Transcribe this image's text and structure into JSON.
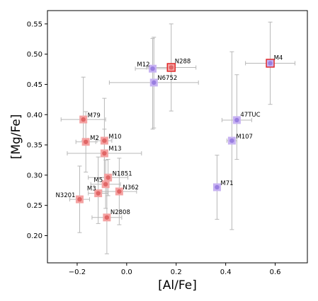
{
  "chart_data": {
    "type": "scatter",
    "title": "",
    "xlabel": "[Al/Fe]",
    "ylabel": "[Mg/Fe]",
    "xlim": [
      -0.32,
      0.73
    ],
    "ylim": [
      0.155,
      0.572
    ],
    "xticks": [
      -0.2,
      0.0,
      0.2,
      0.4,
      0.6
    ],
    "xtick_labels": [
      "−0.2",
      "0.0",
      "0.2",
      "0.4",
      "0.6"
    ],
    "yticks": [
      0.2,
      0.25,
      0.3,
      0.35,
      0.4,
      0.45,
      0.5,
      0.55
    ],
    "ytick_labels": [
      "0.20",
      "0.25",
      "0.30",
      "0.35",
      "0.40",
      "0.45",
      "0.50",
      "0.55"
    ],
    "grid": false,
    "colors": {
      "red_fill": "#e06666",
      "red_square": "#f4a3a3",
      "purple_fill": "#9a7fe0",
      "purple_square": "#c7b2f2",
      "highlight_edge": "#e02020",
      "errorbar": "#b8b8b8"
    },
    "points": [
      {
        "name": "M79",
        "x": -0.175,
        "y": 0.392,
        "xerr": 0.09,
        "yerr_lo": 0.035,
        "yerr_hi": 0.07,
        "group": "red"
      },
      {
        "name": "M2",
        "x": -0.165,
        "y": 0.355,
        "xerr": 0.04,
        "yerr_lo": 0.05,
        "yerr_hi": 0.05,
        "group": "red"
      },
      {
        "name": "M10",
        "x": -0.09,
        "y": 0.357,
        "xerr": 0.03,
        "yerr_lo": 0.07,
        "yerr_hi": 0.07,
        "group": "red"
      },
      {
        "name": "M13",
        "x": -0.09,
        "y": 0.336,
        "xerr": 0.15,
        "yerr_lo": 0.04,
        "yerr_hi": 0.04,
        "group": "red"
      },
      {
        "name": "N1851",
        "x": -0.075,
        "y": 0.296,
        "xerr": 0.08,
        "yerr_lo": 0.03,
        "yerr_hi": 0.03,
        "group": "red"
      },
      {
        "name": "M5",
        "x": -0.085,
        "y": 0.285,
        "xerr": 0.06,
        "yerr_lo": 0.04,
        "yerr_hi": 0.04,
        "group": "red"
      },
      {
        "name": "N362",
        "x": -0.03,
        "y": 0.273,
        "xerr": 0.07,
        "yerr_lo": 0.055,
        "yerr_hi": 0.055,
        "group": "red"
      },
      {
        "name": "M3",
        "x": -0.115,
        "y": 0.27,
        "xerr": 0.04,
        "yerr_lo": 0.05,
        "yerr_hi": 0.06,
        "group": "red"
      },
      {
        "name": "N3201",
        "x": -0.19,
        "y": 0.26,
        "xerr": 0.04,
        "yerr_lo": 0.055,
        "yerr_hi": 0.055,
        "group": "red"
      },
      {
        "name": "N2808",
        "x": -0.08,
        "y": 0.23,
        "xerr": 0.06,
        "yerr_lo": 0.06,
        "yerr_hi": 0.06,
        "group": "red"
      },
      {
        "name": "M12",
        "x": 0.105,
        "y": 0.476,
        "xerr": 0.07,
        "yerr_lo": 0.1,
        "yerr_hi": 0.05,
        "group": "purple"
      },
      {
        "name": "N288",
        "x": 0.18,
        "y": 0.478,
        "xerr": 0.1,
        "yerr_lo": 0.072,
        "yerr_hi": 0.072,
        "group": "red",
        "highlight": true
      },
      {
        "name": "N6752",
        "x": 0.11,
        "y": 0.453,
        "xerr": 0.18,
        "yerr_lo": 0.075,
        "yerr_hi": 0.075,
        "group": "purple"
      },
      {
        "name": "M4",
        "x": 0.58,
        "y": 0.485,
        "xerr": 0.1,
        "yerr_lo": 0.068,
        "yerr_hi": 0.068,
        "group": "purple",
        "highlight": true
      },
      {
        "name": "47TUC",
        "x": 0.445,
        "y": 0.391,
        "xerr": 0.06,
        "yerr_lo": 0.065,
        "yerr_hi": 0.075,
        "group": "purple"
      },
      {
        "name": "M107",
        "x": 0.425,
        "y": 0.357,
        "xerr": 0.02,
        "yerr_lo": 0.147,
        "yerr_hi": 0.147,
        "group": "purple"
      },
      {
        "name": "M71",
        "x": 0.365,
        "y": 0.28,
        "xerr": 0.01,
        "yerr_lo": 0.053,
        "yerr_hi": 0.053,
        "group": "purple"
      }
    ]
  }
}
